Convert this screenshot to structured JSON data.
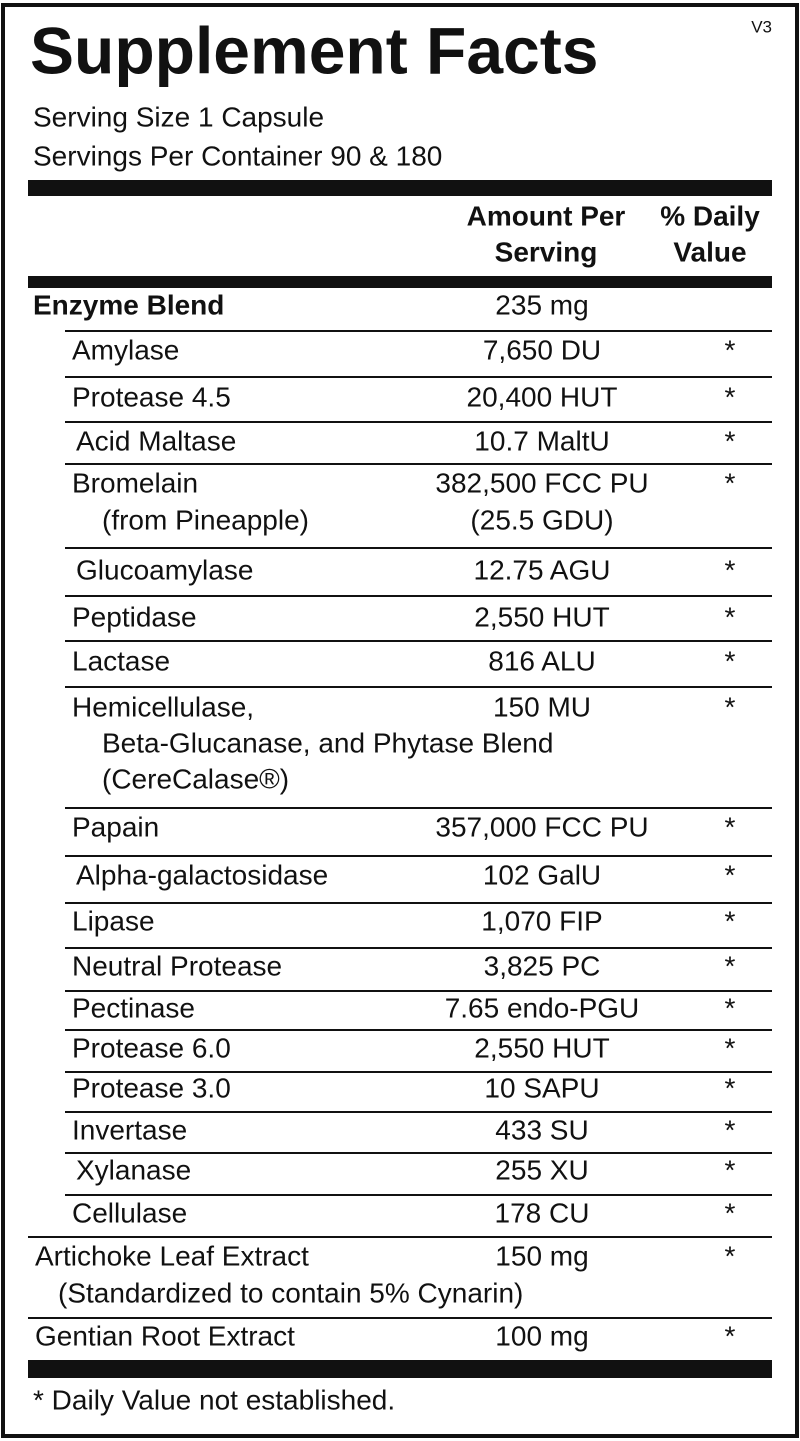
{
  "version": "V3",
  "title": "Supplement Facts",
  "serving_size": "Serving Size 1 Capsule",
  "servings_per_container": "Servings Per Container 90 & 180",
  "header": {
    "amount": [
      "Amount Per",
      "Serving"
    ],
    "daily_value": [
      "% Daily",
      "Value"
    ]
  },
  "rows": [
    {
      "name": [
        "Enzyme Blend"
      ],
      "amount": [
        "235 mg"
      ]
    },
    {
      "name": [
        "Amylase"
      ],
      "amount": [
        "7,650 DU"
      ],
      "daily_value": "*"
    },
    {
      "name": [
        "Protease 4.5"
      ],
      "amount": [
        "20,400 HUT"
      ],
      "daily_value": "*"
    },
    {
      "name": [
        "Acid Maltase"
      ],
      "amount": [
        "10.7 MaltU"
      ],
      "daily_value": "*"
    },
    {
      "name": [
        "Bromelain",
        "(from Pineapple)"
      ],
      "amount": [
        "382,500 FCC PU",
        "(25.5 GDU)"
      ],
      "daily_value": "*"
    },
    {
      "name": [
        "Glucoamylase"
      ],
      "amount": [
        "12.75 AGU"
      ],
      "daily_value": "*"
    },
    {
      "name": [
        "Peptidase"
      ],
      "amount": [
        "2,550 HUT"
      ],
      "daily_value": "*"
    },
    {
      "name": [
        "Lactase"
      ],
      "amount": [
        "816 ALU"
      ],
      "daily_value": "*"
    },
    {
      "name": [
        "Hemicellulase,",
        "Beta-Glucanase, and Phytase Blend",
        "(CereCalase®)"
      ],
      "amount": [
        "150 MU"
      ],
      "daily_value": "*"
    },
    {
      "name": [
        "Papain"
      ],
      "amount": [
        "357,000 FCC PU"
      ],
      "daily_value": "*"
    },
    {
      "name": [
        "Alpha-galactosidase"
      ],
      "amount": [
        "102 GalU"
      ],
      "daily_value": "*"
    },
    {
      "name": [
        "Lipase"
      ],
      "amount": [
        "1,070 FIP"
      ],
      "daily_value": "*"
    },
    {
      "name": [
        "Neutral Protease"
      ],
      "amount": [
        "3,825 PC"
      ],
      "daily_value": "*"
    },
    {
      "name": [
        "Pectinase"
      ],
      "amount": [
        "7.65 endo-PGU"
      ],
      "daily_value": "*"
    },
    {
      "name": [
        "Protease 6.0"
      ],
      "amount": [
        "2,550 HUT"
      ],
      "daily_value": "*"
    },
    {
      "name": [
        "Protease 3.0"
      ],
      "amount": [
        "10 SAPU"
      ],
      "daily_value": "*"
    },
    {
      "name": [
        "Invertase"
      ],
      "amount": [
        "433 SU"
      ],
      "daily_value": "*"
    },
    {
      "name": [
        "Xylanase"
      ],
      "amount": [
        "255 XU"
      ],
      "daily_value": "*"
    },
    {
      "name": [
        "Cellulase"
      ],
      "amount": [
        "178 CU"
      ],
      "daily_value": "*"
    },
    {
      "name": [
        "Artichoke Leaf Extract",
        "(Standardized to contain 5% Cynarin)"
      ],
      "amount": [
        "150 mg"
      ],
      "daily_value": "*"
    },
    {
      "name": [
        "Gentian Root Extract"
      ],
      "amount": [
        "100 mg"
      ],
      "daily_value": "*"
    }
  ],
  "footnote": "* Daily Value not established."
}
